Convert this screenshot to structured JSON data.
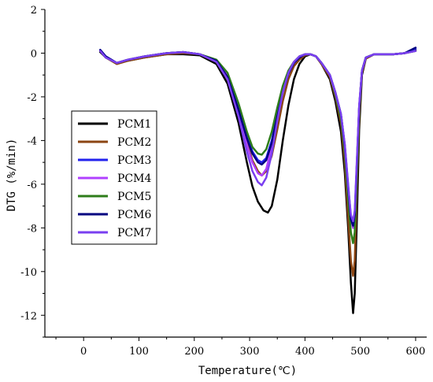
{
  "chart_data": {
    "type": "line",
    "xlabel": "Temperature(℃)",
    "ylabel": "DTG (%/min)",
    "xlim": [
      -70,
      620
    ],
    "ylim": [
      -13,
      2
    ],
    "x_ticks": [
      0,
      100,
      200,
      300,
      400,
      500,
      600
    ],
    "y_ticks": [
      2,
      0,
      -2,
      -4,
      -6,
      -8,
      -10,
      -12
    ],
    "x_tick_labels": [
      "0",
      "100",
      "200",
      "300",
      "400",
      "500",
      "600"
    ],
    "y_tick_labels": [
      "2",
      "0",
      "-2",
      "-4",
      "-6",
      "-8",
      "-10",
      "-12"
    ],
    "grid": false,
    "legend_position": "left",
    "series": [
      {
        "name": "PCM1",
        "color": "#000000",
        "points": [
          [
            30,
            0.05
          ],
          [
            40,
            -0.2
          ],
          [
            60,
            -0.45
          ],
          [
            80,
            -0.35
          ],
          [
            110,
            -0.2
          ],
          [
            150,
            -0.05
          ],
          [
            180,
            -0.05
          ],
          [
            210,
            -0.1
          ],
          [
            240,
            -0.5
          ],
          [
            260,
            -1.4
          ],
          [
            280,
            -3.2
          ],
          [
            295,
            -5.0
          ],
          [
            305,
            -6.1
          ],
          [
            315,
            -6.8
          ],
          [
            325,
            -7.2
          ],
          [
            333,
            -7.3
          ],
          [
            340,
            -7.0
          ],
          [
            350,
            -5.8
          ],
          [
            360,
            -4.0
          ],
          [
            370,
            -2.4
          ],
          [
            380,
            -1.2
          ],
          [
            390,
            -0.5
          ],
          [
            400,
            -0.15
          ],
          [
            410,
            -0.05
          ],
          [
            420,
            -0.15
          ],
          [
            430,
            -0.5
          ],
          [
            445,
            -1.2
          ],
          [
            455,
            -2.2
          ],
          [
            465,
            -3.6
          ],
          [
            472,
            -5.5
          ],
          [
            478,
            -8.0
          ],
          [
            483,
            -10.5
          ],
          [
            487,
            -11.9
          ],
          [
            490,
            -11.0
          ],
          [
            494,
            -7.5
          ],
          [
            498,
            -3.5
          ],
          [
            503,
            -1.0
          ],
          [
            510,
            -0.25
          ],
          [
            525,
            -0.05
          ],
          [
            560,
            -0.05
          ],
          [
            580,
            0.0
          ],
          [
            600,
            0.15
          ]
        ]
      },
      {
        "name": "PCM2",
        "color": "#8b4513",
        "points": [
          [
            30,
            0.1
          ],
          [
            40,
            -0.2
          ],
          [
            60,
            -0.5
          ],
          [
            80,
            -0.35
          ],
          [
            110,
            -0.2
          ],
          [
            150,
            -0.05
          ],
          [
            180,
            0.0
          ],
          [
            210,
            -0.05
          ],
          [
            240,
            -0.4
          ],
          [
            260,
            -1.2
          ],
          [
            280,
            -2.8
          ],
          [
            295,
            -4.1
          ],
          [
            305,
            -4.9
          ],
          [
            315,
            -5.4
          ],
          [
            322,
            -5.6
          ],
          [
            330,
            -5.4
          ],
          [
            340,
            -4.7
          ],
          [
            350,
            -3.5
          ],
          [
            360,
            -2.2
          ],
          [
            370,
            -1.2
          ],
          [
            380,
            -0.6
          ],
          [
            390,
            -0.3
          ],
          [
            400,
            -0.1
          ],
          [
            410,
            -0.05
          ],
          [
            420,
            -0.15
          ],
          [
            430,
            -0.5
          ],
          [
            445,
            -1.1
          ],
          [
            455,
            -2.0
          ],
          [
            465,
            -3.2
          ],
          [
            472,
            -5.0
          ],
          [
            478,
            -7.5
          ],
          [
            483,
            -9.5
          ],
          [
            487,
            -10.2
          ],
          [
            490,
            -9.5
          ],
          [
            494,
            -6.0
          ],
          [
            498,
            -3.0
          ],
          [
            503,
            -0.9
          ],
          [
            510,
            -0.25
          ],
          [
            525,
            -0.05
          ],
          [
            560,
            -0.05
          ],
          [
            580,
            0.0
          ],
          [
            600,
            0.1
          ]
        ]
      },
      {
        "name": "PCM3",
        "color": "#2222ee",
        "points": [
          [
            30,
            0.15
          ],
          [
            40,
            -0.15
          ],
          [
            60,
            -0.45
          ],
          [
            80,
            -0.3
          ],
          [
            110,
            -0.15
          ],
          [
            150,
            0.0
          ],
          [
            180,
            0.05
          ],
          [
            210,
            -0.05
          ],
          [
            240,
            -0.35
          ],
          [
            260,
            -1.0
          ],
          [
            280,
            -2.5
          ],
          [
            295,
            -3.8
          ],
          [
            305,
            -4.5
          ],
          [
            315,
            -4.9
          ],
          [
            322,
            -5.0
          ],
          [
            330,
            -4.8
          ],
          [
            340,
            -4.0
          ],
          [
            350,
            -2.8
          ],
          [
            360,
            -1.7
          ],
          [
            370,
            -0.9
          ],
          [
            380,
            -0.45
          ],
          [
            390,
            -0.2
          ],
          [
            400,
            -0.05
          ],
          [
            410,
            -0.05
          ],
          [
            420,
            -0.15
          ],
          [
            430,
            -0.45
          ],
          [
            445,
            -1.0
          ],
          [
            455,
            -1.8
          ],
          [
            465,
            -2.8
          ],
          [
            472,
            -4.2
          ],
          [
            478,
            -6.0
          ],
          [
            483,
            -7.5
          ],
          [
            487,
            -8.0
          ],
          [
            490,
            -7.5
          ],
          [
            494,
            -5.0
          ],
          [
            498,
            -2.5
          ],
          [
            503,
            -0.8
          ],
          [
            510,
            -0.2
          ],
          [
            525,
            -0.05
          ],
          [
            560,
            -0.05
          ],
          [
            580,
            0.0
          ],
          [
            600,
            0.2
          ]
        ]
      },
      {
        "name": "PCM4",
        "color": "#b040ff",
        "points": [
          [
            30,
            0.1
          ],
          [
            40,
            -0.2
          ],
          [
            60,
            -0.45
          ],
          [
            80,
            -0.3
          ],
          [
            110,
            -0.15
          ],
          [
            150,
            0.0
          ],
          [
            180,
            0.05
          ],
          [
            210,
            -0.05
          ],
          [
            240,
            -0.35
          ],
          [
            260,
            -1.0
          ],
          [
            280,
            -2.7
          ],
          [
            295,
            -4.2
          ],
          [
            305,
            -5.0
          ],
          [
            315,
            -5.5
          ],
          [
            322,
            -5.6
          ],
          [
            330,
            -5.3
          ],
          [
            340,
            -4.3
          ],
          [
            350,
            -2.9
          ],
          [
            360,
            -1.7
          ],
          [
            370,
            -0.9
          ],
          [
            380,
            -0.4
          ],
          [
            390,
            -0.15
          ],
          [
            400,
            -0.05
          ],
          [
            410,
            -0.05
          ],
          [
            420,
            -0.15
          ],
          [
            430,
            -0.45
          ],
          [
            445,
            -1.0
          ],
          [
            455,
            -1.8
          ],
          [
            465,
            -2.9
          ],
          [
            472,
            -4.4
          ],
          [
            478,
            -6.2
          ],
          [
            483,
            -7.6
          ],
          [
            487,
            -8.0
          ],
          [
            490,
            -7.5
          ],
          [
            494,
            -5.0
          ],
          [
            498,
            -2.5
          ],
          [
            503,
            -0.8
          ],
          [
            510,
            -0.2
          ],
          [
            525,
            -0.05
          ],
          [
            560,
            -0.05
          ],
          [
            580,
            0.0
          ],
          [
            600,
            0.1
          ]
        ]
      },
      {
        "name": "PCM5",
        "color": "#2e7d1a",
        "points": [
          [
            30,
            0.1
          ],
          [
            40,
            -0.2
          ],
          [
            60,
            -0.45
          ],
          [
            80,
            -0.3
          ],
          [
            110,
            -0.15
          ],
          [
            150,
            0.0
          ],
          [
            180,
            0.05
          ],
          [
            210,
            -0.05
          ],
          [
            240,
            -0.3
          ],
          [
            260,
            -0.9
          ],
          [
            280,
            -2.3
          ],
          [
            295,
            -3.6
          ],
          [
            305,
            -4.3
          ],
          [
            315,
            -4.6
          ],
          [
            322,
            -4.65
          ],
          [
            330,
            -4.4
          ],
          [
            340,
            -3.6
          ],
          [
            350,
            -2.5
          ],
          [
            360,
            -1.5
          ],
          [
            370,
            -0.8
          ],
          [
            380,
            -0.4
          ],
          [
            390,
            -0.15
          ],
          [
            400,
            -0.05
          ],
          [
            410,
            -0.05
          ],
          [
            420,
            -0.15
          ],
          [
            430,
            -0.45
          ],
          [
            445,
            -1.0
          ],
          [
            455,
            -1.9
          ],
          [
            465,
            -3.0
          ],
          [
            472,
            -4.6
          ],
          [
            478,
            -6.7
          ],
          [
            483,
            -8.2
          ],
          [
            487,
            -8.7
          ],
          [
            490,
            -8.2
          ],
          [
            494,
            -5.5
          ],
          [
            498,
            -2.7
          ],
          [
            503,
            -0.8
          ],
          [
            510,
            -0.2
          ],
          [
            525,
            -0.05
          ],
          [
            560,
            -0.05
          ],
          [
            580,
            0.0
          ],
          [
            600,
            0.1
          ]
        ]
      },
      {
        "name": "PCM6",
        "color": "#000080",
        "points": [
          [
            30,
            0.15
          ],
          [
            40,
            -0.15
          ],
          [
            60,
            -0.45
          ],
          [
            80,
            -0.3
          ],
          [
            110,
            -0.15
          ],
          [
            150,
            0.0
          ],
          [
            180,
            0.05
          ],
          [
            210,
            -0.05
          ],
          [
            240,
            -0.35
          ],
          [
            260,
            -1.1
          ],
          [
            280,
            -2.6
          ],
          [
            295,
            -3.9
          ],
          [
            305,
            -4.6
          ],
          [
            315,
            -5.0
          ],
          [
            322,
            -5.1
          ],
          [
            330,
            -4.9
          ],
          [
            340,
            -4.1
          ],
          [
            350,
            -2.9
          ],
          [
            360,
            -1.8
          ],
          [
            370,
            -0.95
          ],
          [
            380,
            -0.45
          ],
          [
            390,
            -0.2
          ],
          [
            400,
            -0.05
          ],
          [
            410,
            -0.05
          ],
          [
            420,
            -0.15
          ],
          [
            430,
            -0.45
          ],
          [
            445,
            -1.0
          ],
          [
            455,
            -1.8
          ],
          [
            465,
            -2.8
          ],
          [
            472,
            -4.3
          ],
          [
            478,
            -6.2
          ],
          [
            483,
            -7.6
          ],
          [
            487,
            -7.9
          ],
          [
            490,
            -7.4
          ],
          [
            494,
            -5.0
          ],
          [
            498,
            -2.5
          ],
          [
            503,
            -0.8
          ],
          [
            510,
            -0.2
          ],
          [
            525,
            -0.05
          ],
          [
            560,
            -0.05
          ],
          [
            580,
            0.0
          ],
          [
            600,
            0.25
          ]
        ]
      },
      {
        "name": "PCM7",
        "color": "#7a3ff0",
        "points": [
          [
            30,
            0.1
          ],
          [
            40,
            -0.2
          ],
          [
            60,
            -0.45
          ],
          [
            80,
            -0.3
          ],
          [
            110,
            -0.15
          ],
          [
            150,
            0.0
          ],
          [
            180,
            0.05
          ],
          [
            210,
            -0.05
          ],
          [
            240,
            -0.4
          ],
          [
            260,
            -1.2
          ],
          [
            280,
            -2.9
          ],
          [
            295,
            -4.5
          ],
          [
            305,
            -5.4
          ],
          [
            315,
            -5.9
          ],
          [
            322,
            -6.05
          ],
          [
            330,
            -5.7
          ],
          [
            340,
            -4.6
          ],
          [
            350,
            -3.1
          ],
          [
            360,
            -1.8
          ],
          [
            370,
            -0.9
          ],
          [
            380,
            -0.4
          ],
          [
            390,
            -0.15
          ],
          [
            400,
            -0.05
          ],
          [
            410,
            -0.05
          ],
          [
            420,
            -0.15
          ],
          [
            430,
            -0.45
          ],
          [
            445,
            -1.0
          ],
          [
            455,
            -1.8
          ],
          [
            465,
            -2.8
          ],
          [
            472,
            -4.2
          ],
          [
            478,
            -6.1
          ],
          [
            483,
            -7.4
          ],
          [
            487,
            -7.7
          ],
          [
            490,
            -7.2
          ],
          [
            494,
            -4.8
          ],
          [
            498,
            -2.4
          ],
          [
            503,
            -0.8
          ],
          [
            510,
            -0.2
          ],
          [
            525,
            -0.05
          ],
          [
            560,
            -0.05
          ],
          [
            580,
            0.0
          ],
          [
            600,
            0.1
          ]
        ]
      }
    ]
  }
}
